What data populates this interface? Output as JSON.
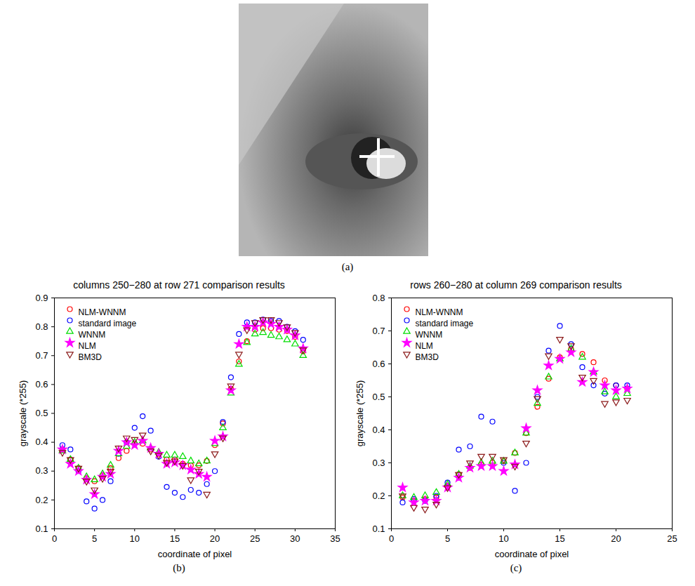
{
  "image": {
    "caption": "(a)"
  },
  "chart_data": [
    {
      "type": "scatter",
      "title": "columns 250−280 at row 271 comparison results",
      "caption": "(b)",
      "x_label": "coordinate of pixel",
      "y_label": "grayscale (*255)",
      "xlim": [
        0,
        35
      ],
      "xticks": [
        0,
        5,
        10,
        15,
        20,
        25,
        30,
        35
      ],
      "ylim": [
        0.1,
        0.9
      ],
      "yticks": [
        0.1,
        0.2,
        0.3,
        0.4,
        0.5,
        0.6,
        0.7,
        0.8,
        0.9
      ],
      "grid": false,
      "legend": "upper left",
      "x": [
        1,
        2,
        3,
        4,
        5,
        6,
        7,
        8,
        9,
        10,
        11,
        12,
        13,
        14,
        15,
        16,
        17,
        18,
        19,
        20,
        21,
        22,
        23,
        24,
        25,
        26,
        27,
        28,
        29,
        30,
        31
      ],
      "series": [
        {
          "name": "NLM-WNNM",
          "color": "#ff0000",
          "marker": "circle",
          "values": [
            0.375,
            0.34,
            0.31,
            0.275,
            0.265,
            0.285,
            0.31,
            0.345,
            0.37,
            0.395,
            0.395,
            0.375,
            0.36,
            0.34,
            0.34,
            0.325,
            0.32,
            0.32,
            0.335,
            0.39,
            0.465,
            0.585,
            0.68,
            0.75,
            0.79,
            0.795,
            0.795,
            0.79,
            0.785,
            0.765,
            0.715
          ]
        },
        {
          "name": "standard image",
          "color": "#0000ff",
          "marker": "circle",
          "values": [
            0.39,
            0.375,
            0.3,
            0.195,
            0.17,
            0.2,
            0.265,
            0.36,
            0.4,
            0.45,
            0.49,
            0.44,
            0.35,
            0.245,
            0.225,
            0.21,
            0.235,
            0.225,
            0.255,
            0.3,
            0.47,
            0.625,
            0.775,
            0.815,
            0.815,
            0.825,
            0.82,
            0.82,
            0.8,
            0.785,
            0.755
          ]
        },
        {
          "name": "WNNM",
          "color": "#00dd00",
          "marker": "triangle",
          "values": [
            0.37,
            0.34,
            0.31,
            0.28,
            0.27,
            0.29,
            0.32,
            0.36,
            0.385,
            0.4,
            0.405,
            0.38,
            0.365,
            0.355,
            0.355,
            0.35,
            0.335,
            0.325,
            0.335,
            0.395,
            0.45,
            0.57,
            0.67,
            0.745,
            0.775,
            0.78,
            0.77,
            0.765,
            0.755,
            0.74,
            0.7
          ]
        },
        {
          "name": "NLM",
          "color": "#ff00ff",
          "marker": "star",
          "values": [
            0.375,
            0.325,
            0.3,
            0.27,
            0.22,
            0.28,
            0.29,
            0.37,
            0.4,
            0.39,
            0.405,
            0.38,
            0.36,
            0.325,
            0.33,
            0.32,
            0.305,
            0.29,
            0.28,
            0.405,
            0.42,
            0.58,
            0.74,
            0.8,
            0.8,
            0.815,
            0.81,
            0.8,
            0.79,
            0.77,
            0.725
          ]
        },
        {
          "name": "BM3D",
          "color": "#8b1a1a",
          "marker": "triangle-down",
          "values": [
            0.365,
            0.34,
            0.31,
            0.265,
            0.235,
            0.275,
            0.3,
            0.38,
            0.415,
            0.41,
            0.425,
            0.37,
            0.355,
            0.33,
            0.335,
            0.32,
            0.27,
            0.3,
            0.22,
            0.36,
            0.415,
            0.595,
            0.705,
            0.79,
            0.815,
            0.825,
            0.825,
            0.815,
            0.8,
            0.78,
            0.72
          ]
        }
      ]
    },
    {
      "type": "scatter",
      "title": "rows 260−280 at column 269 comparison results",
      "caption": "(c)",
      "x_label": "coordinate of pixel",
      "y_label": "grayscale (*255)",
      "xlim": [
        0,
        25
      ],
      "xticks": [
        0,
        5,
        10,
        15,
        20,
        25
      ],
      "ylim": [
        0.1,
        0.8
      ],
      "yticks": [
        0.1,
        0.2,
        0.3,
        0.4,
        0.5,
        0.6,
        0.7,
        0.8
      ],
      "grid": false,
      "legend": "upper left",
      "x": [
        1,
        2,
        3,
        4,
        5,
        6,
        7,
        8,
        9,
        10,
        11,
        12,
        13,
        14,
        15,
        16,
        17,
        18,
        19,
        20,
        21
      ],
      "series": [
        {
          "name": "NLM-WNNM",
          "color": "#ff0000",
          "marker": "circle",
          "values": [
            0.195,
            0.185,
            0.19,
            0.195,
            0.23,
            0.265,
            0.285,
            0.295,
            0.3,
            0.305,
            0.33,
            0.39,
            0.47,
            0.555,
            0.62,
            0.645,
            0.63,
            0.605,
            0.55,
            0.535,
            0.525
          ]
        },
        {
          "name": "standard image",
          "color": "#0000ff",
          "marker": "circle",
          "values": [
            0.18,
            0.19,
            0.185,
            0.2,
            0.24,
            0.34,
            0.35,
            0.44,
            0.425,
            0.3,
            0.215,
            0.3,
            0.5,
            0.64,
            0.715,
            0.66,
            0.59,
            0.535,
            0.51,
            0.535,
            0.535
          ]
        },
        {
          "name": "WNNM",
          "color": "#00dd00",
          "marker": "triangle",
          "values": [
            0.2,
            0.195,
            0.2,
            0.21,
            0.235,
            0.265,
            0.29,
            0.3,
            0.305,
            0.305,
            0.33,
            0.39,
            0.48,
            0.56,
            0.615,
            0.645,
            0.62,
            0.575,
            0.515,
            0.5,
            0.51
          ]
        },
        {
          "name": "NLM",
          "color": "#ff00ff",
          "marker": "star",
          "values": [
            0.225,
            0.18,
            0.185,
            0.185,
            0.225,
            0.255,
            0.285,
            0.29,
            0.29,
            0.275,
            0.295,
            0.405,
            0.52,
            0.595,
            0.615,
            0.635,
            0.545,
            0.575,
            0.535,
            0.52,
            0.525
          ]
        },
        {
          "name": "BM3D",
          "color": "#8b1a1a",
          "marker": "triangle-down",
          "values": [
            0.2,
            0.165,
            0.16,
            0.175,
            0.225,
            0.265,
            0.3,
            0.32,
            0.32,
            0.31,
            0.29,
            0.36,
            0.495,
            0.625,
            0.675,
            0.655,
            0.56,
            0.55,
            0.48,
            0.485,
            0.49
          ]
        }
      ]
    }
  ]
}
